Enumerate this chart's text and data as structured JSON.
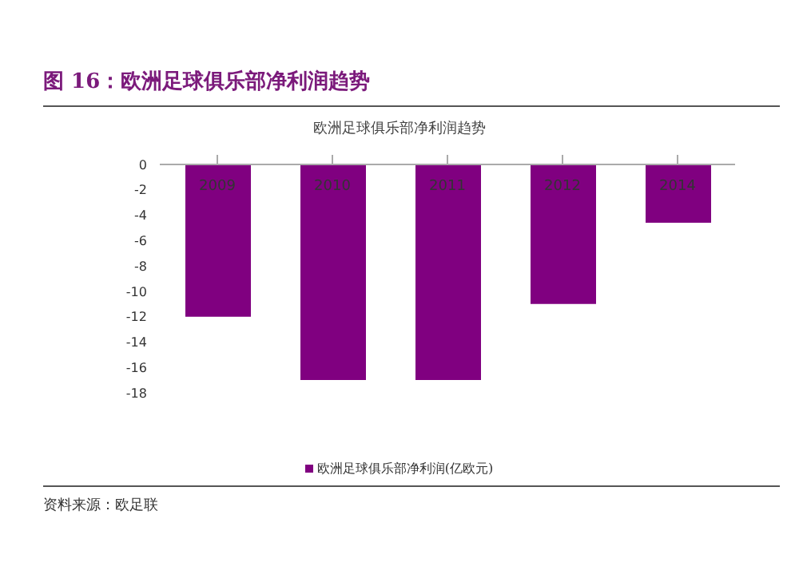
{
  "chart_data": {
    "type": "bar",
    "title": "图 16：欧洲足球俱乐部净利润趋势",
    "subtitle": "欧洲足球俱乐部净利润趋势",
    "categories": [
      "2009",
      "2010",
      "2011",
      "2012",
      "2014"
    ],
    "series": [
      {
        "name": "欧洲足球俱乐部净利润(亿欧元)",
        "color": "#800080",
        "values": [
          -12,
          -17,
          -17,
          -11,
          -4.6
        ]
      }
    ],
    "ylim": [
      -18,
      0
    ],
    "yticks": [
      0,
      -2,
      -4,
      -6,
      -8,
      -10,
      -12,
      -14,
      -16,
      -18
    ],
    "legend": "bottom",
    "annotations": [
      "资料来源：欧足联"
    ]
  }
}
